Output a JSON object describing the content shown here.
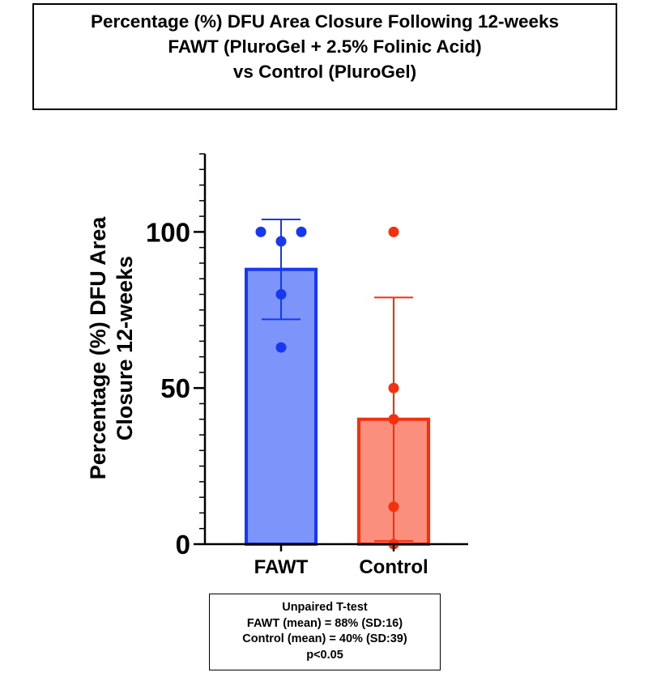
{
  "chart_data": {
    "type": "bar",
    "title": [
      "Percentage (%) DFU Area Closure Following 12-weeks",
      "FAWT (PluroGel + 2.5% Folinic Acid)",
      "vs Control (PluroGel)"
    ],
    "ylabel": [
      "Percentage (%) DFU Area",
      "Closure 12-weeks"
    ],
    "xlabel": "",
    "ylim": [
      0,
      125
    ],
    "yticks": [
      0,
      50,
      100
    ],
    "ytick_labels": [
      "0",
      "50",
      "100"
    ],
    "minor_tick_step": 5,
    "categories": [
      "FAWT",
      "Control"
    ],
    "series": [
      {
        "name": "FAWT",
        "mean": 88,
        "sd": 16,
        "points": [
          100,
          100,
          97,
          80,
          63
        ],
        "color": "#1638f0",
        "fill": "#7d95fb"
      },
      {
        "name": "Control",
        "mean": 40,
        "sd": 39,
        "points": [
          100,
          50,
          40,
          12,
          0
        ],
        "color": "#f5300f",
        "fill": "#fb8f7d"
      }
    ],
    "annotation": [
      "Unpaired T-test",
      "FAWT (mean) = 88% (SD:16)",
      "Control (mean) = 40% (SD:39)",
      "p<0.05"
    ]
  }
}
